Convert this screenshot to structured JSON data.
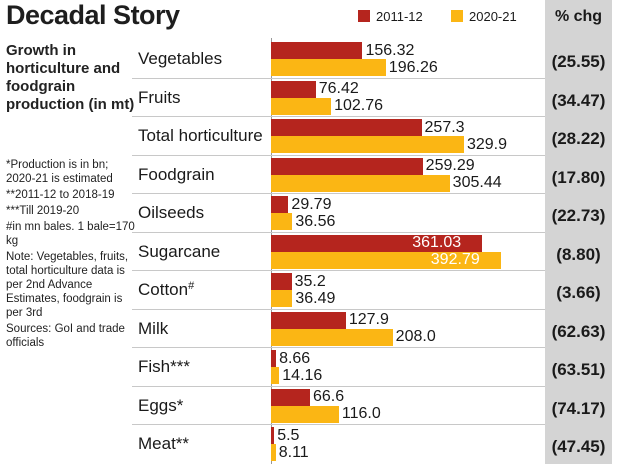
{
  "title": "Decadal Story",
  "subtitle": "Growth in horticulture and foodgrain production (in mt)",
  "notes": [
    "*Production is in bn; 2020-21 is estimated",
    "**2011-12 to 2018-19",
    "***Till 2019-20",
    "#in mn bales. 1 bale=170 kg",
    "Note: Vegetables, fruits, total horticulture data is per 2nd Advance Estimates, foodgrain is per 3rd",
    "Sources: GoI and trade officials"
  ],
  "change_header": "% chg",
  "colors": {
    "series_2011": "#b5251e",
    "series_2020": "#fbb614",
    "change_column_bg": "#d4d4d4"
  },
  "chart_data": {
    "type": "bar",
    "orientation": "horizontal",
    "categories": [
      "Vegetables",
      "Fruits",
      "Total horticulture",
      "Foodgrain",
      "Oilseeds",
      "Sugarcane",
      "Cotton#",
      "Milk",
      "Fish***",
      "Eggs*",
      "Meat**"
    ],
    "series": [
      {
        "name": "2011-12",
        "color": "#b5251e",
        "values": [
          156.32,
          76.42,
          257.3,
          259.29,
          29.79,
          361.03,
          35.2,
          127.9,
          8.66,
          66.6,
          5.5
        ]
      },
      {
        "name": "2020-21",
        "color": "#fbb614",
        "values": [
          196.26,
          102.76,
          329.9,
          305.44,
          36.56,
          392.79,
          36.49,
          208.0,
          14.16,
          116.0,
          8.11
        ]
      }
    ],
    "value_labels": [
      [
        "156.32",
        "76.42",
        "257.3",
        "259.29",
        "29.79",
        "361.03",
        "35.2",
        "127.9",
        "8.66",
        "66.6",
        "5.5"
      ],
      [
        "196.26",
        "102.76",
        "329.9",
        "305.44",
        "36.56",
        "392.79",
        "36.49",
        "208.0",
        "14.16",
        "116.0",
        "8.11"
      ]
    ],
    "pct_change": [
      "(25.55)",
      "(34.47)",
      "(28.22)",
      "(17.80)",
      "(22.73)",
      "(8.80)",
      "(3.66)",
      "(62.63)",
      "(63.51)",
      "(74.17)",
      "(47.45)"
    ],
    "xlim": [
      0,
      400
    ],
    "legend_position": "top-right",
    "grid": false
  }
}
